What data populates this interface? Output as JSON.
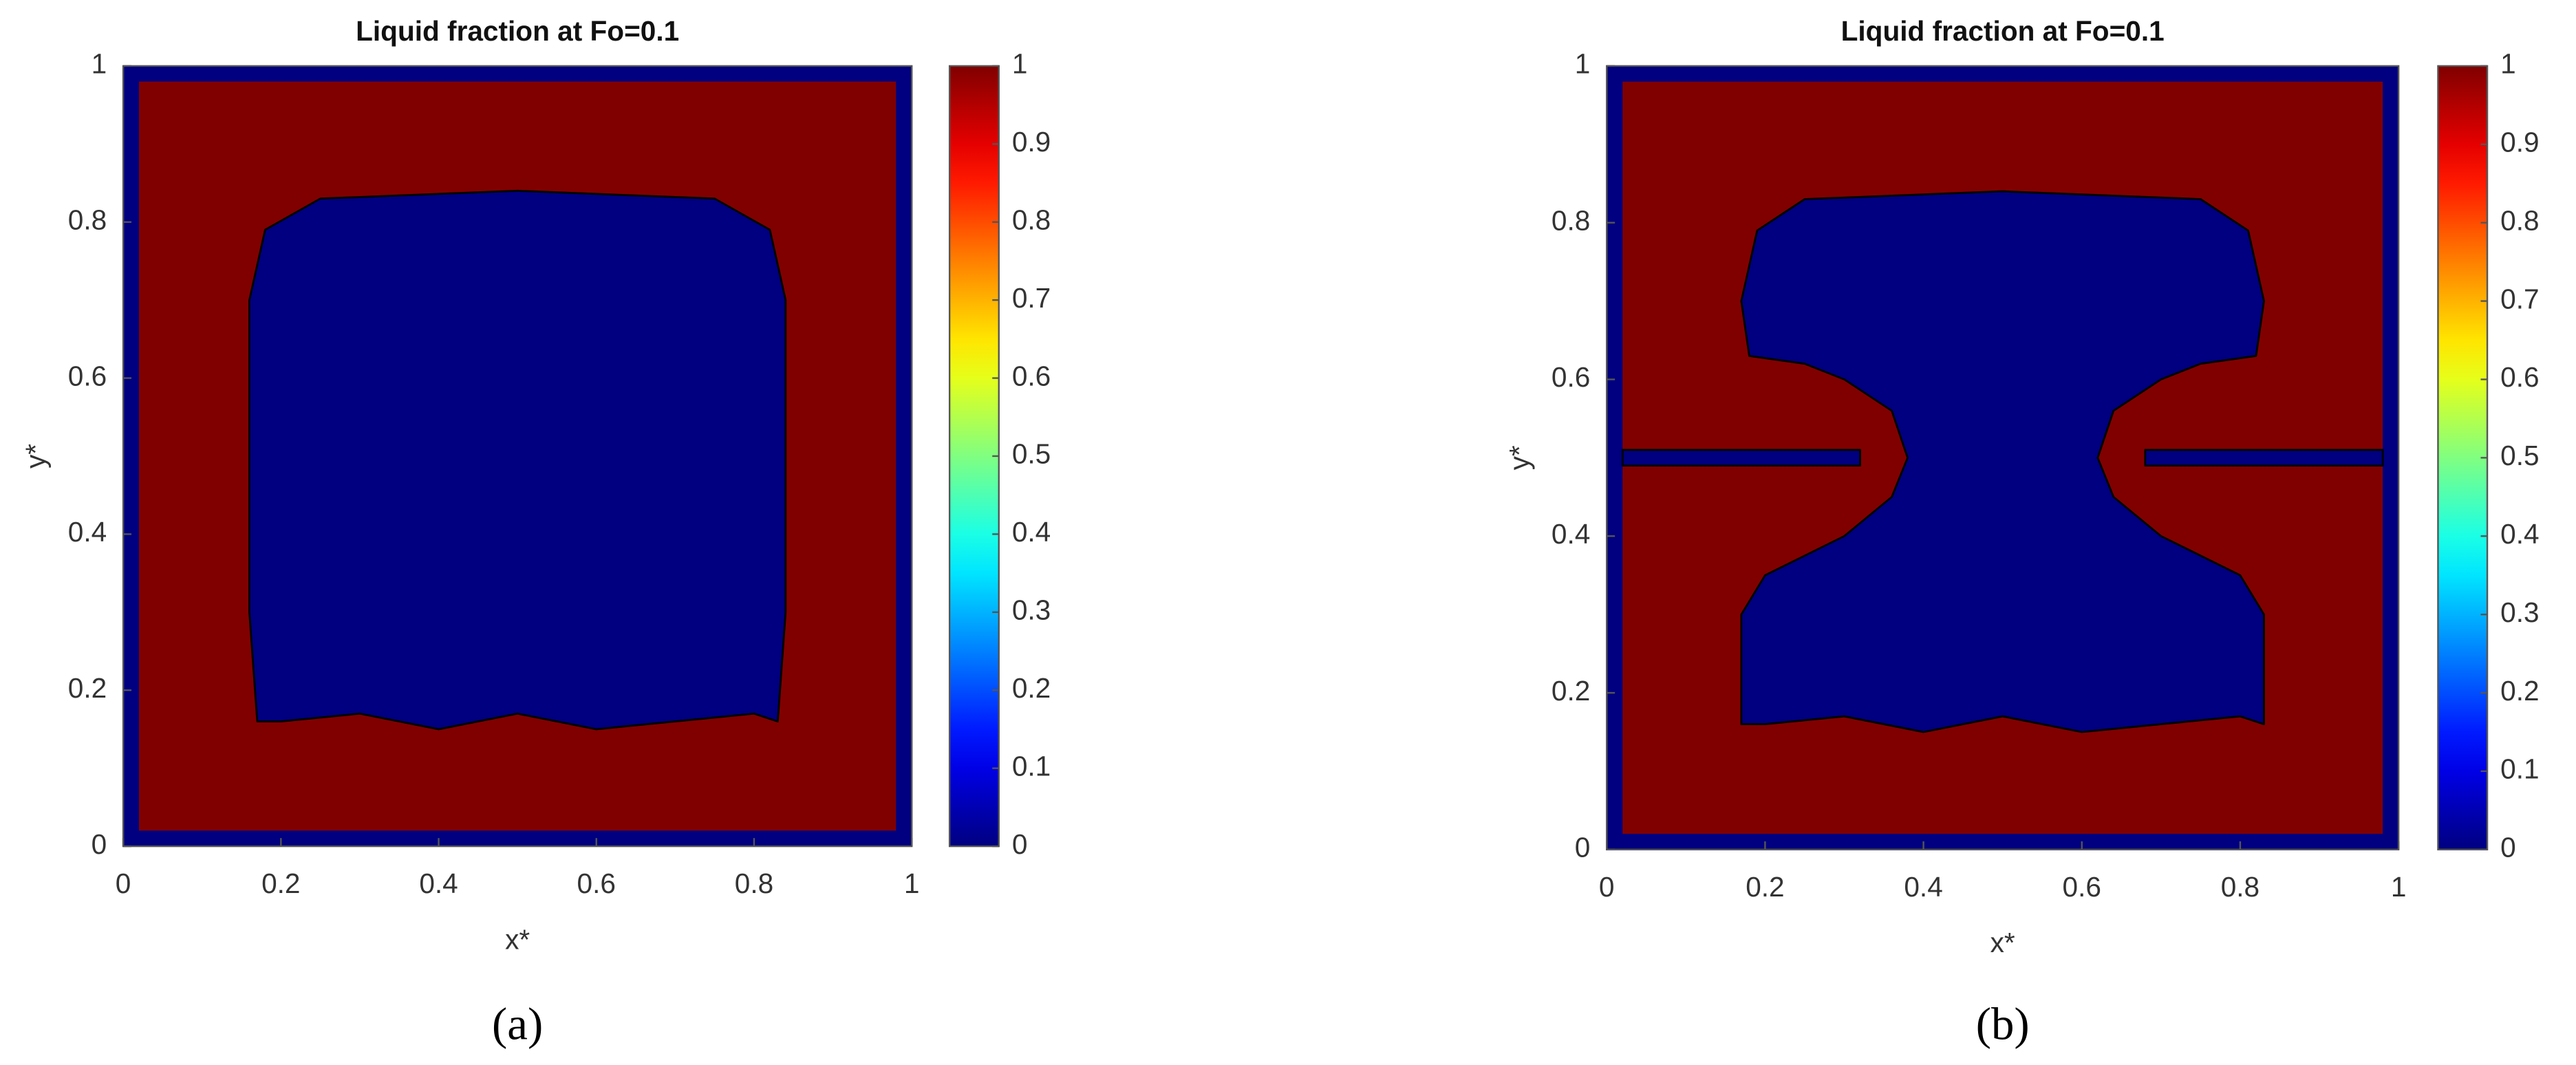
{
  "chart_data": [
    {
      "type": "contour",
      "title": "Liquid fraction at Fo=0.1",
      "x_label": "x*",
      "y_label": "y*",
      "panel_label": "(a)",
      "colormap": "jet",
      "clim": [
        0,
        1
      ],
      "cticks": [
        0,
        0.1,
        0.2,
        0.3,
        0.4,
        0.5,
        0.6,
        0.7,
        0.8,
        0.9,
        1
      ],
      "xlim": [
        0,
        1
      ],
      "ylim": [
        0,
        1
      ],
      "xticks": [
        0,
        0.2,
        0.4,
        0.6,
        0.8,
        1
      ],
      "yticks": [
        0,
        0.2,
        0.4,
        0.6,
        0.8,
        1
      ],
      "regions": [
        {
          "value": 0,
          "x": [
            0,
            1,
            1,
            0
          ],
          "y": [
            0,
            0,
            1,
            1
          ]
        },
        {
          "value": 1,
          "x": [
            0.02,
            0.98,
            0.98,
            0.02
          ],
          "y": [
            0.02,
            0.02,
            0.98,
            0.98
          ]
        },
        {
          "value": 0,
          "x": [
            0.17,
            0.16,
            0.16,
            0.18,
            0.25,
            0.5,
            0.75,
            0.82,
            0.84,
            0.84,
            0.83,
            0.8,
            0.7,
            0.6,
            0.5,
            0.4,
            0.3,
            0.2
          ],
          "y": [
            0.16,
            0.3,
            0.7,
            0.79,
            0.83,
            0.84,
            0.83,
            0.79,
            0.7,
            0.3,
            0.16,
            0.17,
            0.16,
            0.15,
            0.17,
            0.15,
            0.17,
            0.16
          ]
        }
      ]
    },
    {
      "type": "contour",
      "title": "Liquid fraction at Fo=0.1",
      "x_label": "x*",
      "y_label": "y*",
      "panel_label": "(b)",
      "colormap": "jet",
      "clim": [
        0,
        1
      ],
      "cticks": [
        0,
        0.1,
        0.2,
        0.3,
        0.4,
        0.5,
        0.6,
        0.7,
        0.8,
        0.9,
        1
      ],
      "xlim": [
        0,
        1
      ],
      "ylim": [
        0,
        1
      ],
      "xticks": [
        0,
        0.2,
        0.4,
        0.6,
        0.8,
        1
      ],
      "yticks": [
        0,
        0.2,
        0.4,
        0.6,
        0.8,
        1
      ],
      "regions": [
        {
          "value": 0,
          "x": [
            0,
            1,
            1,
            0
          ],
          "y": [
            0,
            0,
            1,
            1
          ]
        },
        {
          "value": 1,
          "x": [
            0.02,
            0.98,
            0.98,
            0.02
          ],
          "y": [
            0.02,
            0.02,
            0.98,
            0.98
          ]
        },
        {
          "value": 0,
          "x": [
            0.02,
            0.32,
            0.32,
            0.02
          ],
          "y": [
            0.49,
            0.49,
            0.51,
            0.51
          ]
        },
        {
          "value": 0,
          "x": [
            0.68,
            0.98,
            0.98,
            0.68
          ],
          "y": [
            0.49,
            0.49,
            0.51,
            0.51
          ]
        },
        {
          "value": 0,
          "x": [
            0.17,
            0.17,
            0.2,
            0.3,
            0.36,
            0.38,
            0.36,
            0.3,
            0.25,
            0.18,
            0.17,
            0.19,
            0.25,
            0.5,
            0.75,
            0.81,
            0.83,
            0.82,
            0.75,
            0.7,
            0.64,
            0.62,
            0.64,
            0.7,
            0.8,
            0.83,
            0.83,
            0.8,
            0.7,
            0.6,
            0.5,
            0.4,
            0.3,
            0.2
          ],
          "y": [
            0.16,
            0.3,
            0.35,
            0.4,
            0.45,
            0.5,
            0.56,
            0.6,
            0.62,
            0.63,
            0.7,
            0.79,
            0.83,
            0.84,
            0.83,
            0.79,
            0.7,
            0.63,
            0.62,
            0.6,
            0.56,
            0.5,
            0.45,
            0.4,
            0.35,
            0.3,
            0.16,
            0.17,
            0.16,
            0.15,
            0.17,
            0.15,
            0.17,
            0.16
          ]
        }
      ]
    }
  ]
}
